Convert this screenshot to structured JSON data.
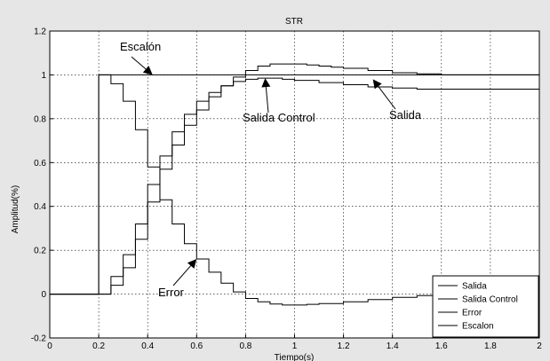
{
  "chart_data": {
    "type": "line",
    "title": "STR",
    "xlabel": "Tiempo(s)",
    "ylabel": "Amplitud(%)",
    "xlim": [
      0,
      2
    ],
    "ylim": [
      -0.2,
      1.2
    ],
    "xticks": [
      "0",
      "0.2",
      "0.4",
      "0.6",
      "0.8",
      "1",
      "1.2",
      "1.4",
      "1.6",
      "1.8",
      "2"
    ],
    "yticks": [
      "-0.2",
      "0",
      "0.2",
      "0.4",
      "0.6",
      "0.8",
      "1",
      "1.2"
    ],
    "grid": true,
    "legend_position": "bottom-right",
    "line_color": "#000000",
    "series": [
      {
        "name": "Salida",
        "style": "staircase",
        "x": [
          0,
          0.2,
          0.25,
          0.3,
          0.35,
          0.4,
          0.45,
          0.5,
          0.55,
          0.6,
          0.65,
          0.7,
          0.75,
          0.8,
          0.85,
          0.9,
          0.95,
          1.0,
          1.05,
          1.1,
          1.15,
          1.2,
          1.3,
          1.4,
          1.5,
          1.6,
          2.0
        ],
        "y": [
          0,
          0,
          0.04,
          0.12,
          0.25,
          0.42,
          0.57,
          0.68,
          0.77,
          0.84,
          0.9,
          0.95,
          0.99,
          1.02,
          1.04,
          1.05,
          1.05,
          1.05,
          1.045,
          1.04,
          1.035,
          1.03,
          1.02,
          1.01,
          1.005,
          1.0,
          1.0
        ]
      },
      {
        "name": "Salida Control",
        "style": "staircase",
        "x": [
          0,
          0.2,
          0.25,
          0.3,
          0.35,
          0.4,
          0.45,
          0.5,
          0.55,
          0.6,
          0.65,
          0.7,
          0.75,
          0.8,
          0.85,
          0.9,
          0.95,
          1.0,
          1.1,
          1.2,
          1.3,
          1.4,
          1.5,
          2.0
        ],
        "y": [
          0,
          0,
          0.08,
          0.18,
          0.32,
          0.5,
          0.63,
          0.74,
          0.82,
          0.88,
          0.92,
          0.95,
          0.97,
          0.98,
          0.985,
          0.985,
          0.98,
          0.975,
          0.965,
          0.955,
          0.945,
          0.94,
          0.935,
          0.935
        ]
      },
      {
        "name": "Error",
        "style": "staircase",
        "x": [
          0,
          0.2,
          0.25,
          0.3,
          0.35,
          0.4,
          0.45,
          0.5,
          0.55,
          0.6,
          0.65,
          0.7,
          0.75,
          0.8,
          0.85,
          0.9,
          0.95,
          1.0,
          1.05,
          1.1,
          1.2,
          1.3,
          1.4,
          1.5,
          1.6,
          2.0
        ],
        "y": [
          0,
          1.0,
          0.96,
          0.88,
          0.75,
          0.58,
          0.43,
          0.32,
          0.23,
          0.16,
          0.1,
          0.05,
          0.01,
          -0.02,
          -0.035,
          -0.045,
          -0.05,
          -0.05,
          -0.047,
          -0.043,
          -0.035,
          -0.025,
          -0.015,
          -0.007,
          0.0,
          0.0
        ]
      },
      {
        "name": "Escalon",
        "style": "line",
        "x": [
          0,
          0.2,
          0.2,
          2.0
        ],
        "y": [
          0,
          0,
          1.0,
          1.0
        ]
      }
    ],
    "annotations": [
      {
        "text": "Escalón",
        "target": [
          0.42,
          1.0
        ]
      },
      {
        "text": "Salida Control",
        "target": [
          0.88,
          0.985
        ]
      },
      {
        "text": "Salida",
        "target": [
          1.32,
          0.98
        ]
      },
      {
        "text": "Error",
        "target": [
          0.6,
          0.16
        ]
      }
    ]
  }
}
